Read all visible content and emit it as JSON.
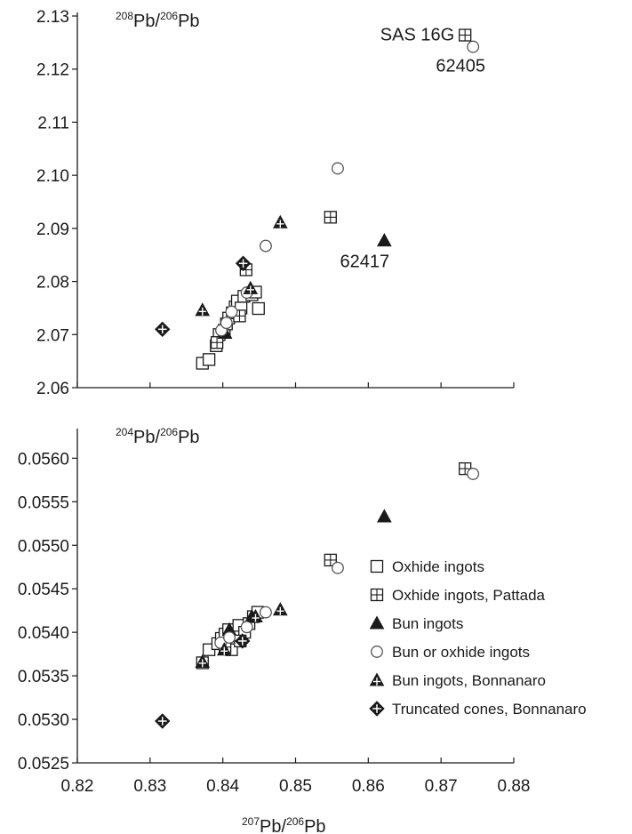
{
  "chart_data": [
    {
      "type": "scatter",
      "ylabel_parts": {
        "m1": "208",
        "b1": "Pb/",
        "m2": "206",
        "b2": "Pb"
      },
      "xlim": [
        0.82,
        0.88
      ],
      "ylim": [
        2.06,
        2.13
      ],
      "yticks": [
        "2.06",
        "2.07",
        "2.08",
        "2.09",
        "2.10",
        "2.11",
        "2.12",
        "2.13"
      ],
      "series": [
        {
          "name": "Oxhide ingots",
          "marker": "square",
          "points": [
            [
              0.8372,
              2.0646
            ],
            [
              0.8381,
              2.0653
            ],
            [
              0.8391,
              2.0679
            ],
            [
              0.8395,
              2.07
            ],
            [
              0.8402,
              2.0708
            ],
            [
              0.8405,
              2.072
            ],
            [
              0.8408,
              2.0731
            ],
            [
              0.8413,
              2.0741
            ],
            [
              0.8417,
              2.0752
            ],
            [
              0.842,
              2.0763
            ],
            [
              0.8425,
              2.075
            ],
            [
              0.8429,
              2.0772
            ],
            [
              0.844,
              2.0775
            ],
            [
              0.8445,
              2.078
            ],
            [
              0.8449,
              2.0749
            ]
          ]
        },
        {
          "name": "Oxhide ingots, Pattada",
          "marker": "square-plus",
          "points": [
            [
              0.8392,
              2.0685
            ],
            [
              0.8423,
              2.0735
            ],
            [
              0.8432,
              2.0822
            ],
            [
              0.8548,
              2.0921
            ],
            [
              0.8733,
              2.1264
            ]
          ]
        },
        {
          "name": "Bun ingots",
          "marker": "triangle",
          "points": [
            [
              0.8403,
              2.0703
            ],
            [
              0.8622,
              2.0877
            ]
          ]
        },
        {
          "name": "Bun or oxhide ingots",
          "marker": "circle",
          "points": [
            [
              0.8398,
              2.0708
            ],
            [
              0.8405,
              2.0722
            ],
            [
              0.8412,
              2.0743
            ],
            [
              0.8433,
              2.0779
            ],
            [
              0.8459,
              2.0867
            ],
            [
              0.8558,
              2.1013
            ],
            [
              0.8744,
              2.1242
            ]
          ]
        },
        {
          "name": "Bun ingots, Bonnanaro",
          "marker": "triangle-plus",
          "points": [
            [
              0.8372,
              2.0746
            ],
            [
              0.8438,
              2.0787
            ],
            [
              0.8479,
              2.0911
            ]
          ]
        },
        {
          "name": "Truncated cones, Bonnanaro",
          "marker": "diamond",
          "points": [
            [
              0.8317,
              2.071
            ],
            [
              0.8428,
              2.0834
            ]
          ]
        }
      ],
      "annotations": [
        {
          "text": "SAS 16G",
          "x": 0.8733,
          "y": 2.1264,
          "anchor": "end",
          "dx": -12,
          "dy": 6
        },
        {
          "text": "62405",
          "x": 0.8744,
          "y": 2.1242,
          "anchor": "middle",
          "dx": -14,
          "dy": 28
        },
        {
          "text": "62417",
          "x": 0.8622,
          "y": 2.0877,
          "anchor": "middle",
          "dx": -22,
          "dy": 30
        }
      ]
    },
    {
      "type": "scatter",
      "ylabel_parts": {
        "m1": "204",
        "b1": "Pb/",
        "m2": "206",
        "b2": "Pb"
      },
      "xlabel_parts": {
        "m1": "207",
        "b1": "Pb/",
        "m2": "206",
        "b2": "Pb"
      },
      "xlim": [
        0.82,
        0.88
      ],
      "ylim": [
        0.0525,
        0.0563
      ],
      "xticks": [
        "0.82",
        "0.83",
        "0.84",
        "0.85",
        "0.86",
        "0.87",
        "0.88"
      ],
      "yticks": [
        "0.0525",
        "0.0530",
        "0.0535",
        "0.0540",
        "0.0545",
        "0.0550",
        "0.0555",
        "0.0560"
      ],
      "series": [
        {
          "name": "Oxhide ingots",
          "marker": "square",
          "points": [
            [
              0.8372,
              0.05365
            ],
            [
              0.8381,
              0.0538
            ],
            [
              0.8393,
              0.05387
            ],
            [
              0.8398,
              0.05393
            ],
            [
              0.8403,
              0.05398
            ],
            [
              0.8408,
              0.05403
            ],
            [
              0.8412,
              0.0538
            ],
            [
              0.8418,
              0.05396
            ],
            [
              0.8422,
              0.05408
            ],
            [
              0.843,
              0.054
            ],
            [
              0.8436,
              0.0541
            ],
            [
              0.8442,
              0.05418
            ],
            [
              0.8448,
              0.05423
            ]
          ]
        },
        {
          "name": "Oxhide ingots, Pattada",
          "marker": "square-plus",
          "points": [
            [
              0.8403,
              0.05383
            ],
            [
              0.8424,
              0.0539
            ],
            [
              0.8548,
              0.05483
            ],
            [
              0.8733,
              0.05588
            ]
          ]
        },
        {
          "name": "Bun ingots",
          "marker": "triangle",
          "points": [
            [
              0.8409,
              0.05403
            ],
            [
              0.844,
              0.05418
            ],
            [
              0.8622,
              0.05533
            ]
          ]
        },
        {
          "name": "Bun or oxhide ingots",
          "marker": "circle",
          "points": [
            [
              0.8397,
              0.05388
            ],
            [
              0.8409,
              0.05394
            ],
            [
              0.8433,
              0.05406
            ],
            [
              0.8459,
              0.05423
            ],
            [
              0.8558,
              0.05474
            ],
            [
              0.8744,
              0.05582
            ]
          ]
        },
        {
          "name": "Bun ingots, Bonnanaro",
          "marker": "triangle-plus",
          "points": [
            [
              0.8372,
              0.05366
            ],
            [
              0.8402,
              0.0538
            ],
            [
              0.8445,
              0.05418
            ],
            [
              0.8479,
              0.05426
            ]
          ]
        },
        {
          "name": "Truncated cones, Bonnanaro",
          "marker": "diamond",
          "points": [
            [
              0.8317,
              0.05298
            ],
            [
              0.8427,
              0.0539
            ]
          ]
        }
      ],
      "legend_position": "right"
    }
  ],
  "legend": [
    {
      "label": "Oxhide ingots",
      "marker": "square"
    },
    {
      "label": "Oxhide ingots, Pattada",
      "marker": "square-plus"
    },
    {
      "label": "Bun ingots",
      "marker": "triangle"
    },
    {
      "label": "Bun or oxhide ingots",
      "marker": "circle"
    },
    {
      "label": "Bun ingots, Bonnanaro",
      "marker": "triangle-plus"
    },
    {
      "label": "Truncated cones, Bonnanaro",
      "marker": "diamond"
    }
  ],
  "colors": {
    "ink": "#1a1a1a",
    "open_fill": "#ffffff",
    "circle_stroke": "#555555"
  }
}
